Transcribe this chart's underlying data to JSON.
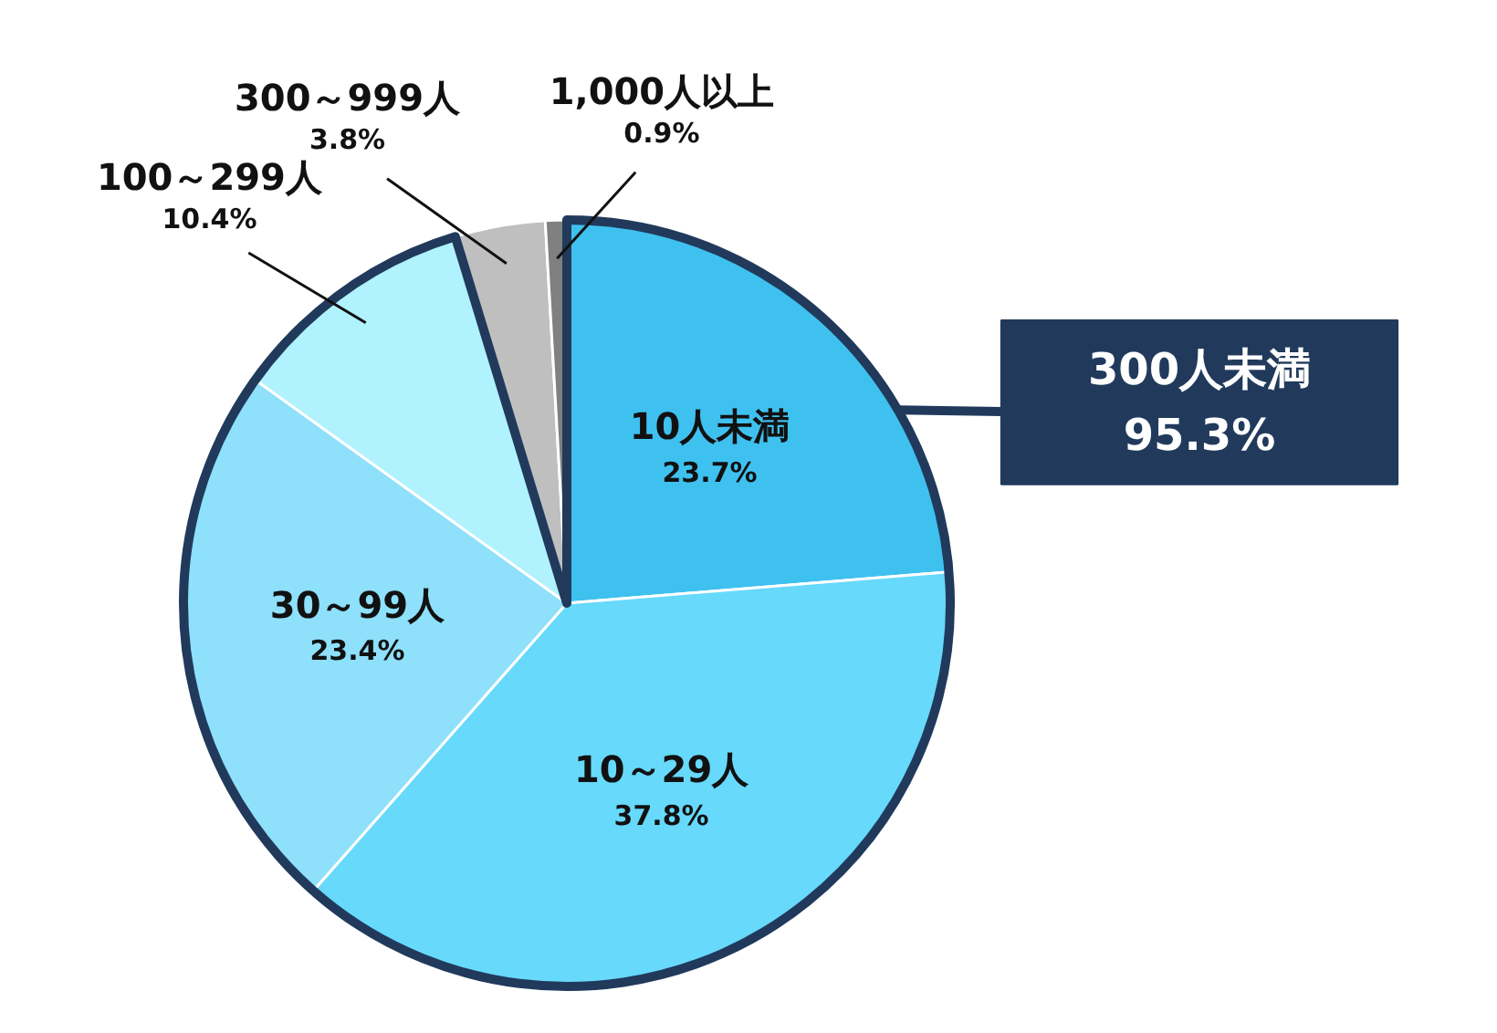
{
  "chart_data": {
    "type": "pie",
    "categories": [
      "10人未満",
      "10～29人",
      "30～99人",
      "100～299人",
      "300～999人",
      "1,000人以上"
    ],
    "values": [
      23.7,
      37.8,
      23.4,
      10.4,
      3.8,
      0.9
    ],
    "colors": [
      "#3fc1f0",
      "#67d9fb",
      "#8ee0fb",
      "#b0f2fd",
      "#bfbfbf",
      "#808080"
    ],
    "value_labels": [
      "23.7%",
      "37.8%",
      "23.4%",
      "10.4%",
      "3.8%",
      "0.9%"
    ],
    "annotations": [
      "300人未満\n95.3%"
    ]
  }
}
